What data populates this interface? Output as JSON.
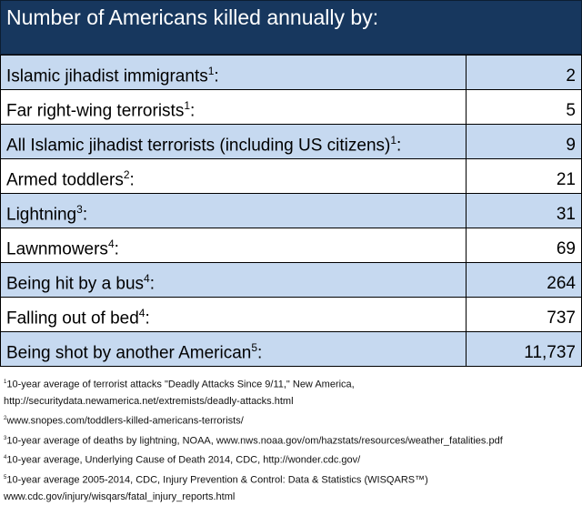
{
  "title": "Number of Americans killed annually by:",
  "rows": [
    {
      "label": "Islamic jihadist immigrants",
      "note": "1",
      "suffix": ":",
      "value": "2"
    },
    {
      "label": "Far right-wing terrorists",
      "note": "1",
      "suffix": ":",
      "value": "5"
    },
    {
      "label": "All Islamic jihadist terrorists (including US citizens)",
      "note": "1",
      "suffix": ":",
      "value": "9"
    },
    {
      "label": "Armed toddlers",
      "note": "2",
      "suffix": ":",
      "value": "21"
    },
    {
      "label": "Lightning",
      "note": "3",
      "suffix": ":",
      "value": "31"
    },
    {
      "label": "Lawnmowers",
      "note": "4",
      "suffix": ":",
      "value": "69"
    },
    {
      "label": "Being hit by a bus",
      "note": "4",
      "suffix": ":",
      "value": "264"
    },
    {
      "label": "Falling out of bed",
      "note": "4",
      "suffix": ":",
      "value": "737"
    },
    {
      "label": "Being shot by another American",
      "note": "5",
      "suffix": ":",
      "value": "11,737"
    }
  ],
  "footnotes": [
    {
      "n": "1",
      "lines": [
        "10-year average of terrorist attacks \"Deadly Attacks Since 9/11,\" New America,",
        "http://securitydata.newamerica.net/extremists/deadly-attacks.html"
      ]
    },
    {
      "n": "2",
      "lines": [
        "www.snopes.com/toddlers-killed-americans-terrorists/"
      ]
    },
    {
      "n": "3",
      "lines": [
        "10-year average of deaths by lightning, NOAA, www.nws.noaa.gov/om/hazstats/resources/weather_fatalities.pdf"
      ]
    },
    {
      "n": "4",
      "lines": [
        "10-year average, Underlying Cause of Death 2014, CDC, http://wonder.cdc.gov/"
      ]
    },
    {
      "n": "5",
      "lines": [
        "10-year average 2005-2014, CDC, Injury Prevention & Control: Data & Statistics (WISQARS™)",
        "www.cdc.gov/injury/wisqars/fatal_injury_reports.html"
      ]
    }
  ],
  "colors": {
    "header": "#17375e",
    "row_alt": "#c6d9f0"
  }
}
